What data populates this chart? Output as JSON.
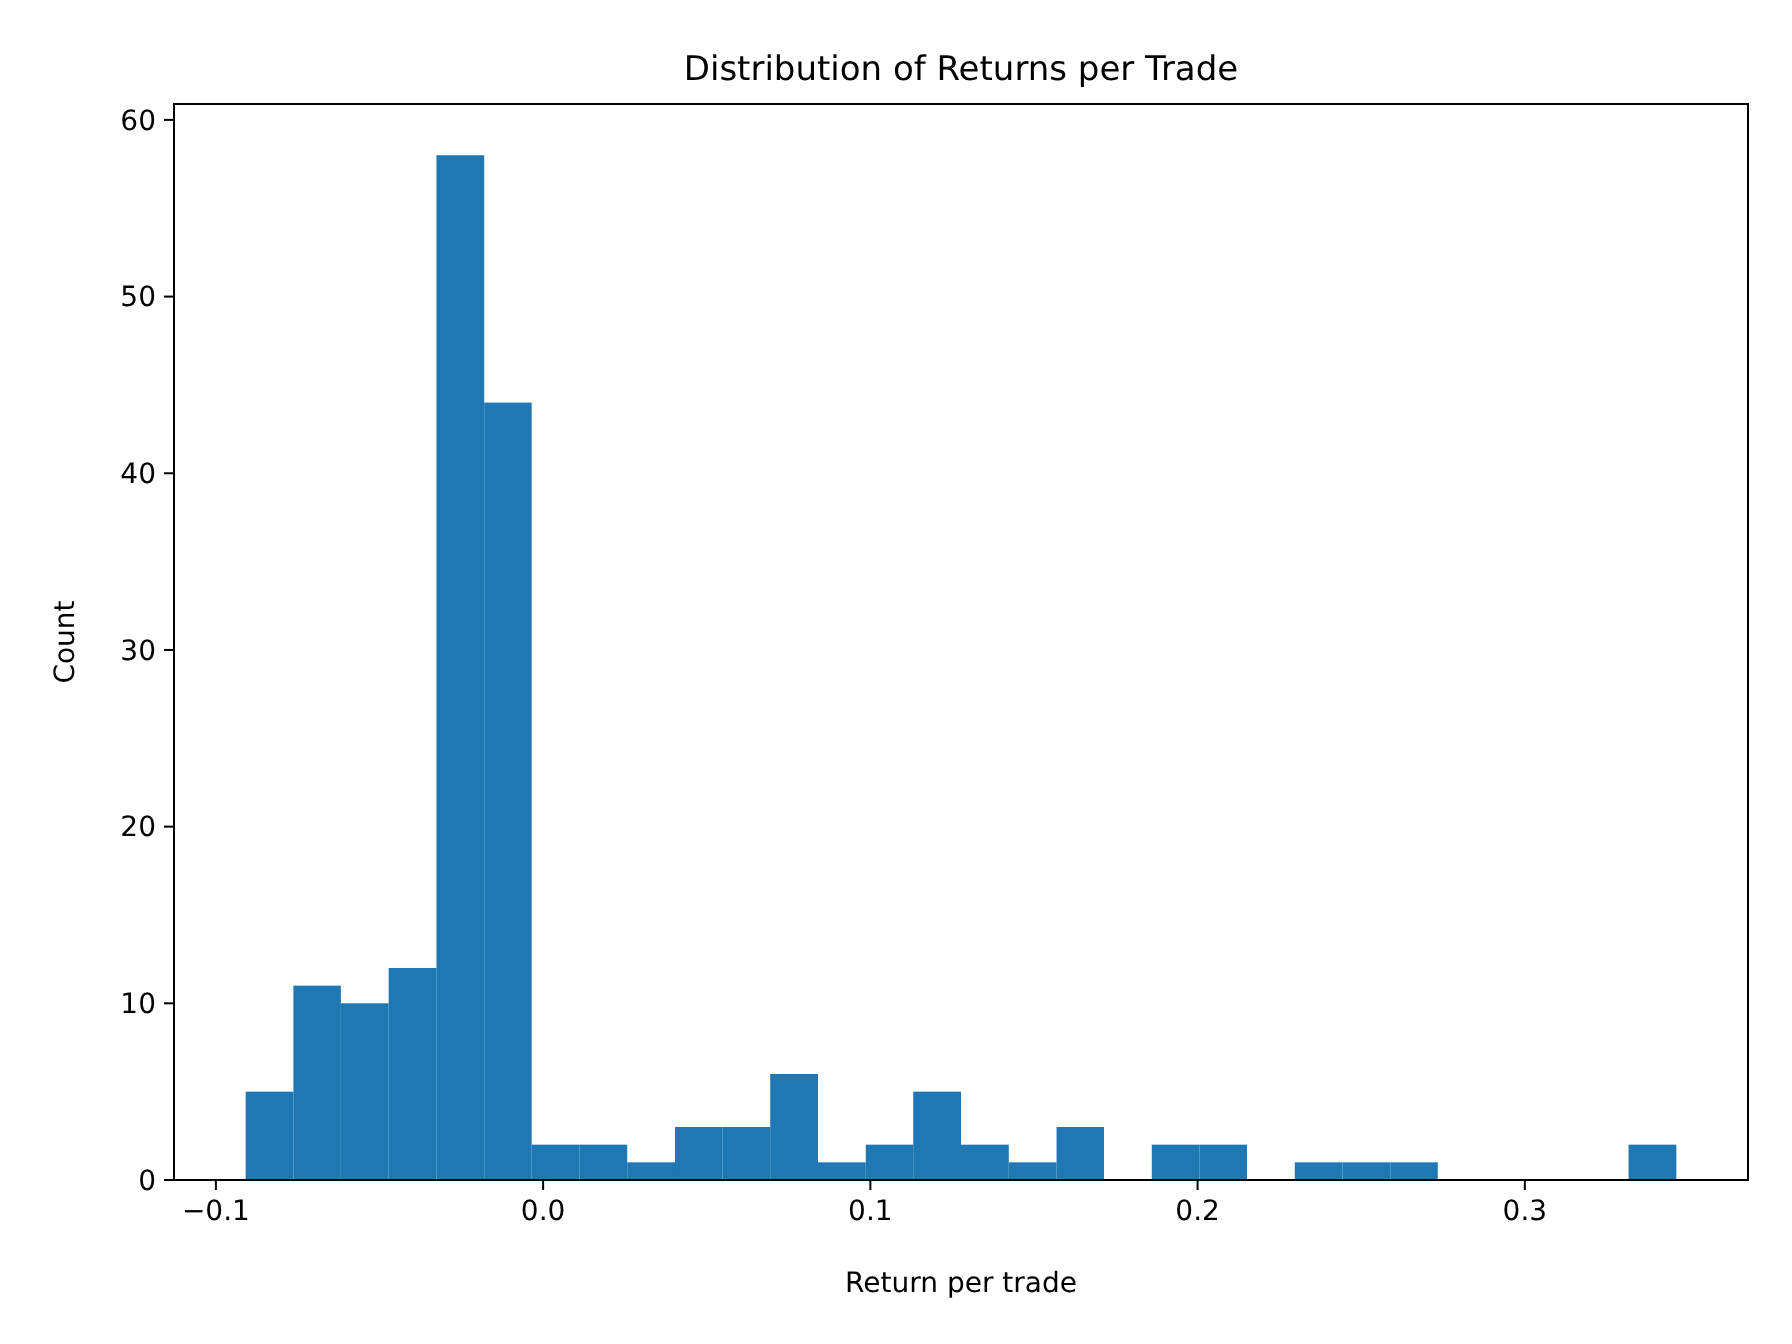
{
  "chart_data": {
    "type": "histogram",
    "title": "Distribution of Returns per Trade",
    "xlabel": "Return per trade",
    "ylabel": "Count",
    "color": "#1f77b4",
    "bins": [
      -0.0909,
      -0.0763,
      -0.0618,
      -0.0472,
      -0.0326,
      -0.018,
      -0.0035,
      0.0111,
      0.0257,
      0.0403,
      0.0548,
      0.0694,
      0.084,
      0.0986,
      0.1131,
      0.1277,
      0.1423,
      0.1569,
      0.1714,
      0.186,
      0.2006,
      0.2151,
      0.2297,
      0.2443,
      0.2589,
      0.2734,
      0.288,
      0.3026,
      0.3172,
      0.3317,
      0.3463
    ],
    "values": [
      5,
      11,
      10,
      12,
      58,
      44,
      2,
      2,
      1,
      3,
      3,
      6,
      1,
      2,
      5,
      2,
      1,
      3,
      0,
      2,
      2,
      0,
      1,
      1,
      1,
      0,
      0,
      0,
      0,
      2
    ],
    "xlim": [
      -0.1128,
      0.3682
    ],
    "xticks": [
      {
        "value": -0.1,
        "label": "−0.1"
      },
      {
        "value": 0,
        "label": "0.0"
      },
      {
        "value": 0.1,
        "label": "0.1"
      },
      {
        "value": 0.2,
        "label": "0.2"
      },
      {
        "value": 0.3,
        "label": "0.3"
      }
    ],
    "ylim": [
      0,
      60.9
    ],
    "yticks": [
      0,
      10,
      20,
      30,
      40,
      50,
      60
    ],
    "grid": false
  }
}
